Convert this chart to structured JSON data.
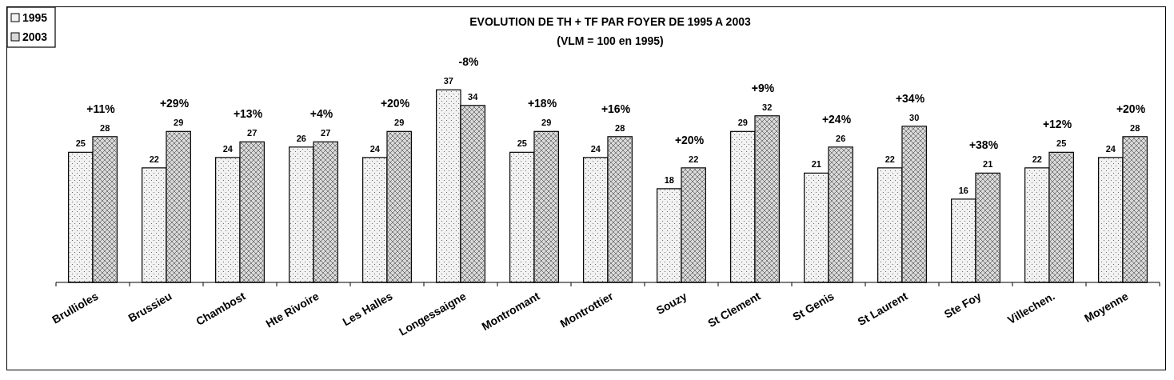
{
  "chart_data": {
    "type": "bar",
    "title": "EVOLUTION DE TH + TF  PAR FOYER DE 1995 A 2003",
    "subtitle": "(VLM = 100 en 1995)",
    "categories": [
      "Brullioles",
      "Brussieu",
      "Chambost",
      "Hte Rivoire",
      "Les Halles",
      "Longessaigne",
      "Montromant",
      "Montrottier",
      "Souzy",
      "St Clement",
      "St Genis",
      "St Laurent",
      "Ste Foy",
      "Villechen.",
      "Moyenne"
    ],
    "series": [
      {
        "name": "1995",
        "color": "#f2f2f2",
        "values": [
          25,
          22,
          24,
          26,
          24,
          37,
          25,
          24,
          18,
          29,
          21,
          22,
          16,
          22,
          24
        ]
      },
      {
        "name": "2003",
        "color": "#d9d9d9",
        "values": [
          28,
          29,
          27,
          27,
          29,
          34,
          29,
          28,
          22,
          32,
          26,
          30,
          21,
          25,
          28
        ]
      }
    ],
    "data_labels": true,
    "legend": "top left",
    "tick_labels": "x",
    "annotations": [
      "+11%",
      "+29%",
      "+13%",
      "+4%",
      "+20%",
      "-8%",
      "+18%",
      "+16%",
      "+20%",
      "+9%",
      "+24%",
      "+34%",
      "+38%",
      "+12%",
      "+20%"
    ]
  }
}
